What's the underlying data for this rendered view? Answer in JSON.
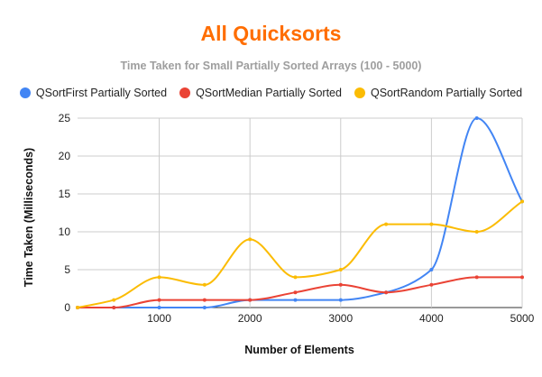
{
  "colors": {
    "title": "#ff6d01",
    "grid": "#cccccc",
    "axis": "#333333"
  },
  "chart_data": {
    "type": "line",
    "title": "All Quicksorts",
    "subtitle": "Time Taken for Small Partially Sorted Arrays (100 - 5000)",
    "xlabel": "Number of Elements",
    "ylabel": "Time Taken (Milliseconds)",
    "xlim": [
      100,
      5000
    ],
    "ylim": [
      0,
      25
    ],
    "x_ticks": [
      1000,
      2000,
      3000,
      4000,
      5000
    ],
    "y_ticks": [
      0,
      5,
      10,
      15,
      20,
      25
    ],
    "grid": true,
    "smooth": true,
    "legend_position": "top",
    "x": [
      100,
      500,
      1000,
      1500,
      2000,
      2500,
      3000,
      3500,
      4000,
      4500,
      5000
    ],
    "series": [
      {
        "name": "QSortFirst Partially Sorted",
        "color": "#4285f4",
        "values": [
          0,
          0,
          0,
          0,
          1,
          1,
          1,
          2,
          5,
          25,
          14
        ]
      },
      {
        "name": "QSortMedian Partially Sorted",
        "color": "#ea4335",
        "values": [
          0,
          0,
          1,
          1,
          1,
          2,
          3,
          2,
          3,
          4,
          4
        ]
      },
      {
        "name": "QSortRandom Partially Sorted",
        "color": "#fbbc04",
        "values": [
          0,
          1,
          4,
          3,
          9,
          4,
          5,
          11,
          11,
          10,
          14
        ]
      }
    ]
  }
}
